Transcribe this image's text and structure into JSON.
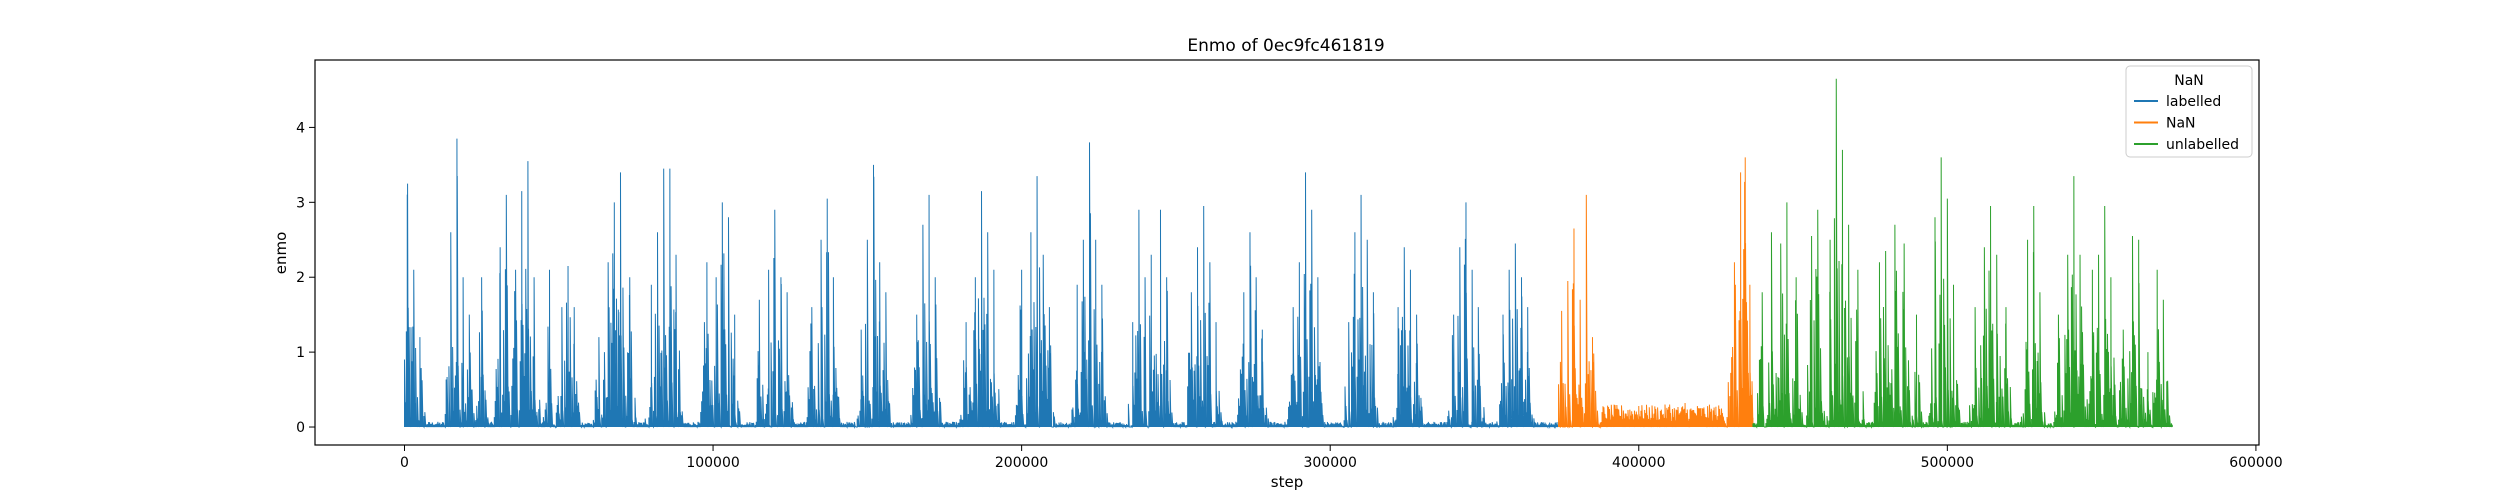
{
  "chart_data": {
    "type": "line",
    "title": "Enmo of 0ec9fc461819",
    "xlabel": "step",
    "ylabel": "enmo",
    "xlim": [
      -29000,
      601000
    ],
    "ylim": [
      -0.24,
      4.9
    ],
    "x_ticks": [
      0,
      100000,
      200000,
      300000,
      400000,
      500000,
      600000
    ],
    "x_tick_labels": [
      "0",
      "100000",
      "200000",
      "300000",
      "400000",
      "500000",
      "600000"
    ],
    "y_ticks": [
      0,
      1,
      2,
      3,
      4
    ],
    "y_tick_labels": [
      "0",
      "1",
      "2",
      "3",
      "4"
    ],
    "grid": false,
    "legend": {
      "title": "NaN",
      "placement": "top-right",
      "entries": [
        "labelled",
        "NaN",
        "unlabelled"
      ]
    },
    "series": [
      {
        "name": "labelled",
        "color": "#1f77b4",
        "x_range": [
          0,
          374000
        ],
        "peaks": [
          [
            1000,
            3.25
          ],
          [
            3000,
            2.1
          ],
          [
            5000,
            1.2
          ],
          [
            15000,
            2.6
          ],
          [
            17000,
            3.85
          ],
          [
            19000,
            2.0
          ],
          [
            21000,
            1.5
          ],
          [
            25000,
            2.0
          ],
          [
            31000,
            2.4
          ],
          [
            33000,
            3.1
          ],
          [
            36000,
            2.1
          ],
          [
            38000,
            3.15
          ],
          [
            40000,
            3.55
          ],
          [
            42000,
            2.0
          ],
          [
            47000,
            2.1
          ],
          [
            51000,
            1.6
          ],
          [
            53000,
            2.15
          ],
          [
            55000,
            1.6
          ],
          [
            63000,
            1.2
          ],
          [
            66000,
            2.2
          ],
          [
            68000,
            3.0
          ],
          [
            70000,
            3.4
          ],
          [
            73000,
            2.0
          ],
          [
            80000,
            1.9
          ],
          [
            82000,
            2.6
          ],
          [
            84000,
            3.45
          ],
          [
            86000,
            3.45
          ],
          [
            88000,
            2.3
          ],
          [
            98000,
            2.2
          ],
          [
            101000,
            2.0
          ],
          [
            103000,
            3.0
          ],
          [
            105000,
            2.8
          ],
          [
            107000,
            1.5
          ],
          [
            115000,
            1.7
          ],
          [
            118000,
            2.1
          ],
          [
            120000,
            2.9
          ],
          [
            122000,
            2.0
          ],
          [
            124000,
            1.8
          ],
          [
            132000,
            1.6
          ],
          [
            135000,
            2.5
          ],
          [
            137000,
            3.05
          ],
          [
            139000,
            2.0
          ],
          [
            148000,
            1.3
          ],
          [
            150000,
            2.5
          ],
          [
            152000,
            3.5
          ],
          [
            154000,
            2.2
          ],
          [
            156000,
            1.8
          ],
          [
            166000,
            1.5
          ],
          [
            168000,
            2.7
          ],
          [
            170000,
            3.1
          ],
          [
            172000,
            2.0
          ],
          [
            182000,
            1.4
          ],
          [
            185000,
            2.0
          ],
          [
            187000,
            3.15
          ],
          [
            189000,
            2.6
          ],
          [
            191000,
            2.1
          ],
          [
            200000,
            2.1
          ],
          [
            203000,
            2.6
          ],
          [
            205000,
            3.35
          ],
          [
            207000,
            2.3
          ],
          [
            209000,
            1.6
          ],
          [
            218000,
            1.9
          ],
          [
            220000,
            2.5
          ],
          [
            222000,
            3.8
          ],
          [
            224000,
            2.5
          ],
          [
            226000,
            1.9
          ],
          [
            236000,
            1.4
          ],
          [
            238000,
            2.9
          ],
          [
            240000,
            2.0
          ],
          [
            242000,
            2.3
          ],
          [
            245000,
            2.9
          ],
          [
            247000,
            2.0
          ],
          [
            255000,
            1.8
          ],
          [
            257000,
            2.4
          ],
          [
            259000,
            2.95
          ],
          [
            261000,
            2.2
          ],
          [
            263000,
            1.4
          ],
          [
            272000,
            1.8
          ],
          [
            274000,
            2.6
          ],
          [
            276000,
            2.0
          ],
          [
            278000,
            1.3
          ],
          [
            288000,
            1.6
          ],
          [
            290000,
            2.2
          ],
          [
            292000,
            3.4
          ],
          [
            294000,
            2.9
          ],
          [
            296000,
            2.0
          ],
          [
            306000,
            1.4
          ],
          [
            308000,
            2.6
          ],
          [
            310000,
            3.1
          ],
          [
            312000,
            2.5
          ],
          [
            314000,
            1.8
          ],
          [
            322000,
            1.6
          ],
          [
            324000,
            2.4
          ],
          [
            326000,
            2.1
          ],
          [
            328000,
            1.5
          ],
          [
            340000,
            1.5
          ],
          [
            342000,
            2.4
          ],
          [
            344000,
            3.0
          ],
          [
            346000,
            2.1
          ],
          [
            348000,
            1.6
          ],
          [
            356000,
            1.5
          ],
          [
            358000,
            2.1
          ],
          [
            360000,
            2.45
          ],
          [
            362000,
            2.0
          ],
          [
            364000,
            1.6
          ]
        ]
      },
      {
        "name": "NaN",
        "color": "#ff7f0e",
        "x_range": [
          374000,
          437000
        ],
        "peaks": [
          [
            375000,
            1.55
          ],
          [
            377000,
            1.95
          ],
          [
            379000,
            2.65
          ],
          [
            381000,
            1.7
          ],
          [
            383000,
            3.1
          ],
          [
            385000,
            1.2
          ],
          [
            395000,
            0.22
          ],
          [
            400000,
            0.28
          ],
          [
            405000,
            0.18
          ],
          [
            410000,
            0.3
          ],
          [
            415000,
            0.32
          ],
          [
            420000,
            0.25
          ],
          [
            425000,
            0.2
          ],
          [
            429000,
            0.6
          ],
          [
            431000,
            2.2
          ],
          [
            433000,
            3.4
          ],
          [
            434500,
            3.6
          ],
          [
            436000,
            1.9
          ]
        ]
      },
      {
        "name": "unlabelled",
        "color": "#2ca02c",
        "x_range": [
          437000,
          573000
        ],
        "peaks": [
          [
            440000,
            1.8
          ],
          [
            443000,
            2.6
          ],
          [
            446000,
            2.45
          ],
          [
            448000,
            3.0
          ],
          [
            451000,
            2.0
          ],
          [
            456000,
            2.55
          ],
          [
            458000,
            2.9
          ],
          [
            462000,
            2.5
          ],
          [
            464000,
            4.65
          ],
          [
            466000,
            3.7
          ],
          [
            468000,
            2.7
          ],
          [
            471000,
            2.1
          ],
          [
            478000,
            2.2
          ],
          [
            480000,
            2.35
          ],
          [
            483000,
            2.7
          ],
          [
            486000,
            2.45
          ],
          [
            490000,
            1.5
          ],
          [
            496000,
            2.8
          ],
          [
            498000,
            3.6
          ],
          [
            500000,
            3.05
          ],
          [
            502000,
            1.9
          ],
          [
            509000,
            1.6
          ],
          [
            512000,
            2.4
          ],
          [
            514000,
            2.95
          ],
          [
            516000,
            2.3
          ],
          [
            519000,
            1.6
          ],
          [
            526000,
            2.5
          ],
          [
            528000,
            2.95
          ],
          [
            530000,
            1.8
          ],
          [
            536000,
            1.5
          ],
          [
            539000,
            2.3
          ],
          [
            541000,
            3.35
          ],
          [
            543000,
            2.3
          ],
          [
            547000,
            2.1
          ],
          [
            549000,
            2.3
          ],
          [
            551000,
            2.95
          ],
          [
            553000,
            2.0
          ],
          [
            557000,
            1.3
          ],
          [
            560000,
            2.55
          ],
          [
            562000,
            2.5
          ],
          [
            565000,
            1.0
          ],
          [
            568000,
            2.1
          ],
          [
            570000,
            1.7
          ]
        ]
      }
    ]
  }
}
